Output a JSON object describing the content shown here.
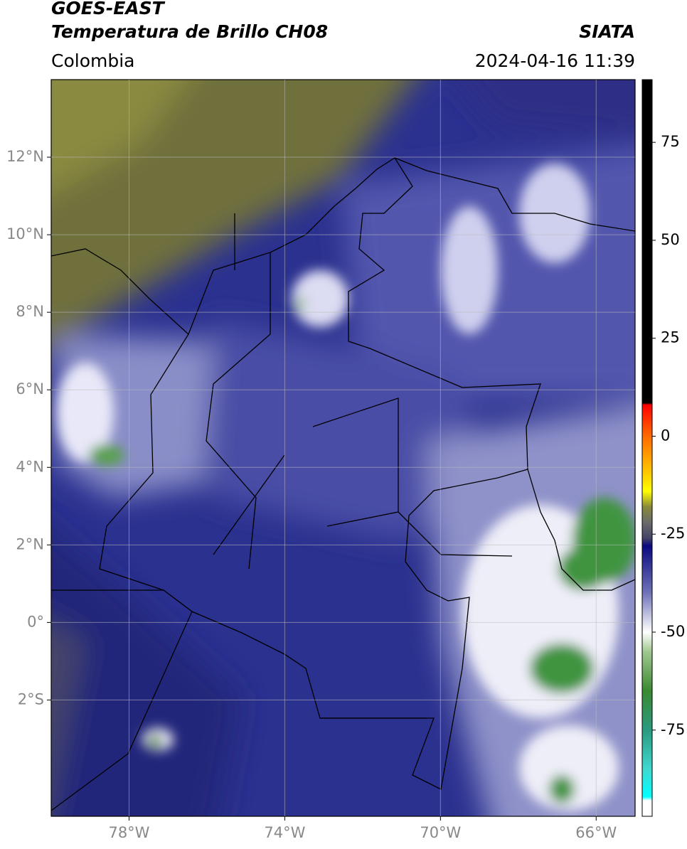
{
  "header": {
    "title": "GOES-EAST",
    "subtitle": "Temperatura de Brillo CH08",
    "source": "SIATA",
    "region": "Colombia",
    "datetime": "2024-04-16 11:39"
  },
  "chart_data": {
    "type": "map",
    "xlim": [
      -80,
      -65
    ],
    "ylim": [
      -5,
      14
    ],
    "xticks": [
      {
        "value": -78,
        "label": "78°W"
      },
      {
        "value": -74,
        "label": "74°W"
      },
      {
        "value": -70,
        "label": "70°W"
      },
      {
        "value": -66,
        "label": "66°W"
      }
    ],
    "yticks": [
      {
        "value": 12,
        "label": "12°N"
      },
      {
        "value": 10,
        "label": "10°N"
      },
      {
        "value": 8,
        "label": "8°N"
      },
      {
        "value": 6,
        "label": "6°N"
      },
      {
        "value": 4,
        "label": "4°N"
      },
      {
        "value": 2,
        "label": "2°N"
      },
      {
        "value": 0,
        "label": "0°"
      },
      {
        "value": -2,
        "label": "2°S"
      }
    ],
    "grid": true,
    "colorbar": {
      "lim": [
        -97,
        91
      ],
      "ticks": [
        75,
        50,
        25,
        0,
        -25,
        -50,
        -75
      ],
      "stops": [
        {
          "value": 91,
          "color": "#000000"
        },
        {
          "value": 8.5,
          "color": "#000000"
        },
        {
          "value": 8,
          "color": "#ff0000"
        },
        {
          "value": 0,
          "color": "#ff6a00"
        },
        {
          "value": -10,
          "color": "#ffd000"
        },
        {
          "value": -14,
          "color": "#ffff00"
        },
        {
          "value": -18,
          "color": "#8a8a3a"
        },
        {
          "value": -22,
          "color": "#6b6b6b"
        },
        {
          "value": -26,
          "color": "#444466"
        },
        {
          "value": -28,
          "color": "#0a0a80"
        },
        {
          "value": -40,
          "color": "#6f73b8"
        },
        {
          "value": -50,
          "color": "#ffffff"
        },
        {
          "value": -55,
          "color": "#a0c890"
        },
        {
          "value": -65,
          "color": "#3a8a30"
        },
        {
          "value": -75,
          "color": "#2a9a80"
        },
        {
          "value": -85,
          "color": "#40d8d0"
        },
        {
          "value": -92,
          "color": "#00ffff"
        },
        {
          "value": -93,
          "color": "#ffffff"
        },
        {
          "value": -97,
          "color": "#ffffff"
        }
      ]
    }
  }
}
